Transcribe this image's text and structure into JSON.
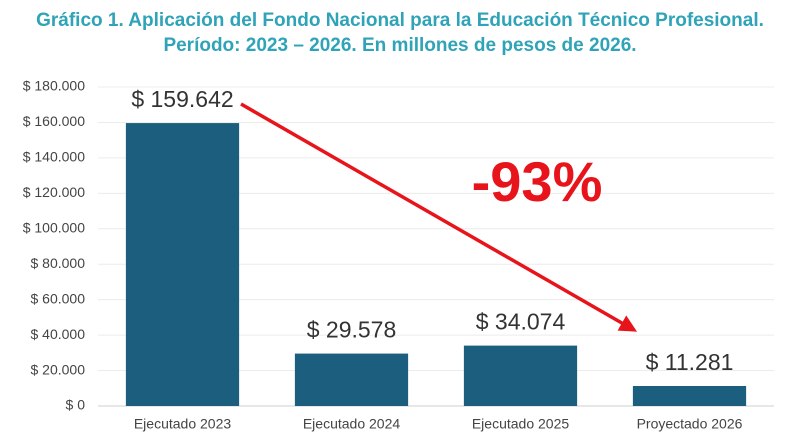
{
  "chart_data": {
    "type": "bar",
    "title": [
      "Gráfico 1. Aplicación del Fondo Nacional para la Educación Técnico Profesional.",
      "Período: 2023 – 2026. En millones de pesos de 2026."
    ],
    "categories": [
      "Ejecutado 2023",
      "Ejecutado 2024",
      "Ejecutado 2025",
      "Proyectado 2026"
    ],
    "values": [
      159642,
      29578,
      34074,
      11281
    ],
    "value_labels": [
      "$ 159.642",
      "$ 29.578",
      "$ 34.074",
      "$ 11.281"
    ],
    "color": "#1b5e7e",
    "ylim": [
      0,
      180000
    ],
    "yticks": [
      {
        "value": 0,
        "label": "$ 0"
      },
      {
        "value": 20000,
        "label": "$ 20.000"
      },
      {
        "value": 40000,
        "label": "$ 40.000"
      },
      {
        "value": 60000,
        "label": "$ 60.000"
      },
      {
        "value": 80000,
        "label": "$ 80.000"
      },
      {
        "value": 100000,
        "label": "$ 100.000"
      },
      {
        "value": 120000,
        "label": "$ 120.000"
      },
      {
        "value": 140000,
        "label": "$ 140.000"
      },
      {
        "value": 160000,
        "label": "$ 160.000"
      },
      {
        "value": 180000,
        "label": "$ 180.000"
      }
    ],
    "grid": true,
    "annotation": "-93%"
  }
}
